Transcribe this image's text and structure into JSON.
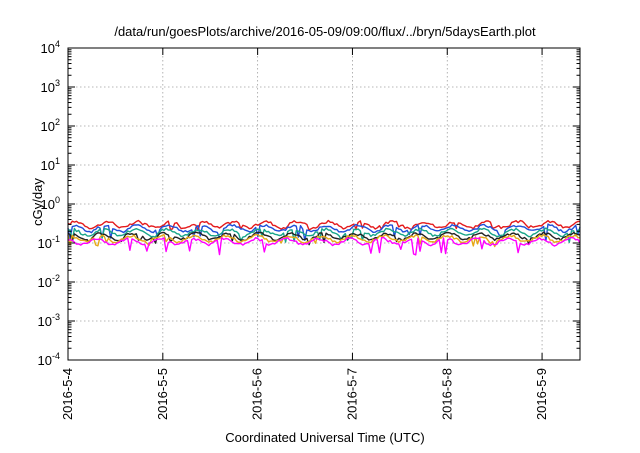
{
  "chart_data": {
    "type": "line",
    "title": "/data/run/goesPlots/archive/2016-05-09/09:00/flux/../bryn/5daysEarth.plot",
    "xlabel": "Coordinated Universal Time (UTC)",
    "ylabel": "cGy/day",
    "yscale": "log",
    "ylim": [
      0.0001,
      10000
    ],
    "xlim": [
      0,
      5.4
    ],
    "x_ticks": [
      {
        "value": 0,
        "label": "2016-5-4"
      },
      {
        "value": 1,
        "label": "2016-5-5"
      },
      {
        "value": 2,
        "label": "2016-5-6"
      },
      {
        "value": 3,
        "label": "2016-5-7"
      },
      {
        "value": 4,
        "label": "2016-5-8"
      },
      {
        "value": 5,
        "label": "2016-5-9"
      }
    ],
    "y_ticks": [
      {
        "value": 0.0001,
        "base": "10",
        "exp": "-4"
      },
      {
        "value": 0.001,
        "base": "10",
        "exp": "-3"
      },
      {
        "value": 0.01,
        "base": "10",
        "exp": "-2"
      },
      {
        "value": 0.1,
        "base": "10",
        "exp": "-1"
      },
      {
        "value": 1,
        "base": "10",
        "exp": "0"
      },
      {
        "value": 10,
        "base": "10",
        "exp": "1"
      },
      {
        "value": 100,
        "base": "10",
        "exp": "2"
      },
      {
        "value": 1000,
        "base": "10",
        "exp": "3"
      },
      {
        "value": 10000,
        "base": "10",
        "exp": "4"
      }
    ],
    "grid": true,
    "legend": "none",
    "series": [
      {
        "color": "#e41a1c",
        "base": 0.3,
        "dip": 0.25
      },
      {
        "color": "#1f4fd8",
        "base": 0.24,
        "dip": 0.14
      },
      {
        "color": "#17a589",
        "base": 0.19,
        "dip": 0.13
      },
      {
        "color": "#222222",
        "base": 0.15,
        "dip": 0.11
      },
      {
        "color": "#e6a817",
        "base": 0.13,
        "dip": 0.1
      },
      {
        "color": "#ff00ff",
        "base": 0.11,
        "dip": 0.06
      }
    ]
  }
}
